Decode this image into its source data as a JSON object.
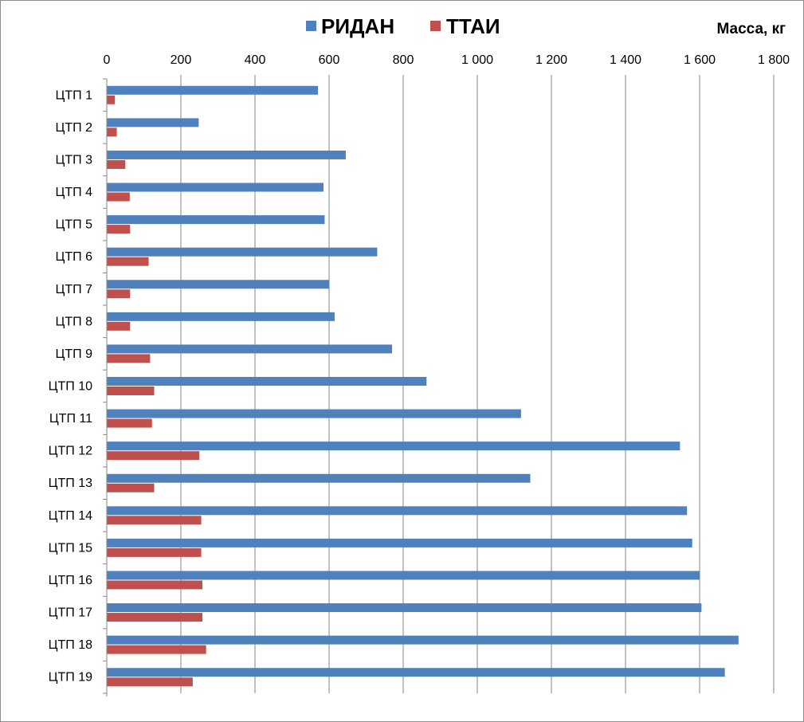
{
  "chart_data": {
    "type": "bar",
    "orientation": "horizontal",
    "unit_label": "Масса, кг",
    "categories": [
      "ЦТП 1",
      "ЦТП 2",
      "ЦТП 3",
      "ЦТП 4",
      "ЦТП 5",
      "ЦТП 6",
      "ЦТП 7",
      "ЦТП 8",
      "ЦТП 9",
      "ЦТП 10",
      "ЦТП 11",
      "ЦТП 12",
      "ЦТП 13",
      "ЦТП 14",
      "ЦТП 15",
      "ЦТП 16",
      "ЦТП 17",
      "ЦТП 18",
      "ЦТП 19"
    ],
    "series": [
      {
        "name": "РИДАН",
        "color": "#4f81bd",
        "values": [
          570,
          248,
          645,
          585,
          588,
          730,
          600,
          615,
          770,
          863,
          1118,
          1547,
          1143,
          1566,
          1580,
          1600,
          1605,
          1705,
          1668
        ]
      },
      {
        "name": "ТТАИ",
        "color": "#c0504d",
        "values": [
          22,
          27,
          50,
          62,
          63,
          113,
          63,
          63,
          117,
          128,
          122,
          250,
          128,
          255,
          255,
          258,
          258,
          268,
          232
        ]
      }
    ],
    "x_ticks": [
      "0",
      "200",
      "400",
      "600",
      "800",
      "1 000",
      "1 200",
      "1 400",
      "1 600",
      "1 800"
    ],
    "xlim": [
      0,
      1800
    ],
    "axis_position": "top",
    "grid": true,
    "legend_position": "top-center"
  }
}
